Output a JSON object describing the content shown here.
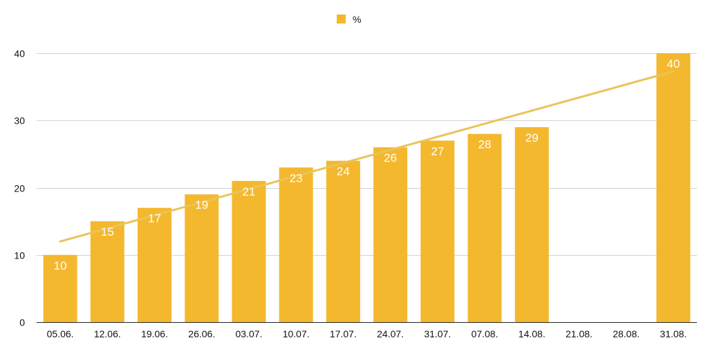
{
  "chart_data": {
    "type": "bar",
    "categories": [
      "05.06.",
      "12.06.",
      "19.06.",
      "26.06.",
      "03.07.",
      "10.07.",
      "17.07.",
      "24.07.",
      "31.07.",
      "07.08.",
      "14.08.",
      "21.08.",
      "28.08.",
      "31.08."
    ],
    "series": [
      {
        "name": "%",
        "values": [
          10,
          15,
          17,
          19,
          21,
          23,
          24,
          26,
          27,
          28,
          29,
          null,
          null,
          40
        ],
        "color": "#F4B82E"
      }
    ],
    "data_labels": [
      "10",
      "15",
      "17",
      "19",
      "21",
      "23",
      "24",
      "26",
      "27",
      "28",
      "29",
      "",
      "",
      "40"
    ],
    "trendline": {
      "type": "linear",
      "start": 12.0,
      "end": 37.3,
      "color": "#EAC35A"
    },
    "ylim": [
      0,
      40
    ],
    "yticks": [
      "0",
      "10",
      "20",
      "30",
      "40"
    ],
    "grid": true,
    "legend": {
      "position": "top",
      "label": "%"
    }
  }
}
